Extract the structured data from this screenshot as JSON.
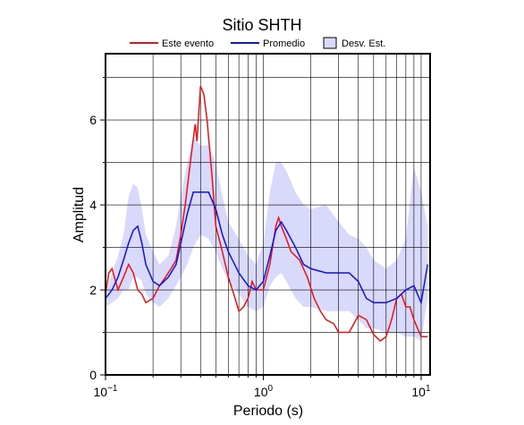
{
  "chart_data": {
    "type": "line",
    "title": "Sitio SHTH",
    "x_label": "Periodo (s)",
    "y_label": "Amplitud",
    "xscale": "log",
    "xlim": [
      0.1,
      11.4
    ],
    "ylim": [
      0,
      7.56
    ],
    "xticks": [
      {
        "value": 0.1,
        "label": "10",
        "power": "−1"
      },
      {
        "value": 1,
        "label": "10",
        "power": "0"
      },
      {
        "value": 10,
        "label": "10",
        "power": "1"
      }
    ],
    "xminor": [
      0.2,
      0.3,
      0.4,
      0.5,
      0.6,
      0.7,
      0.8,
      0.9,
      2,
      3,
      4,
      5,
      6,
      7,
      8,
      9
    ],
    "yticks": [
      0,
      2,
      4,
      6
    ],
    "yminor": [
      1,
      3,
      5,
      7
    ],
    "grid": true,
    "band": {
      "name": "Desv. Est.",
      "color": "#d9d9fb",
      "x": [
        0.1,
        0.11,
        0.12,
        0.13,
        0.14,
        0.15,
        0.16,
        0.17,
        0.18,
        0.2,
        0.22,
        0.25,
        0.28,
        0.3,
        0.33,
        0.36,
        0.4,
        0.45,
        0.5,
        0.55,
        0.6,
        0.7,
        0.8,
        0.9,
        1.0,
        1.1,
        1.2,
        1.3,
        1.4,
        1.6,
        1.8,
        2.0,
        2.5,
        3.0,
        3.5,
        4.0,
        4.5,
        5.0,
        6.0,
        7.0,
        8.0,
        9.0,
        10.0,
        11.0
      ],
      "lower": [
        1.6,
        1.7,
        1.8,
        2.0,
        2.0,
        2.3,
        2.3,
        2.2,
        1.9,
        1.7,
        1.6,
        1.8,
        2.1,
        2.3,
        2.6,
        3.0,
        3.3,
        3.2,
        2.9,
        2.5,
        2.2,
        1.9,
        1.6,
        1.5,
        1.6,
        2.1,
        2.3,
        2.4,
        2.2,
        1.8,
        1.6,
        1.6,
        1.5,
        1.5,
        1.5,
        1.3,
        1.1,
        1.1,
        1.0,
        1.0,
        0.9,
        0.9,
        0.8,
        1.8
      ],
      "upper": [
        1.9,
        2.4,
        2.8,
        3.3,
        4.2,
        4.5,
        4.4,
        3.9,
        3.3,
        2.9,
        2.6,
        2.8,
        3.5,
        4.2,
        5.0,
        5.6,
        5.4,
        5.4,
        5.0,
        4.2,
        3.6,
        3.2,
        2.8,
        2.6,
        3.1,
        4.3,
        5.0,
        5.0,
        4.8,
        4.3,
        4.0,
        3.9,
        4.0,
        3.6,
        3.3,
        3.2,
        3.0,
        2.7,
        2.5,
        2.7,
        3.2,
        4.9,
        4.3,
        3.5
      ]
    },
    "series": [
      {
        "name": "Este evento",
        "color": "#ee1111",
        "x": [
          0.1,
          0.105,
          0.11,
          0.12,
          0.13,
          0.14,
          0.15,
          0.16,
          0.17,
          0.18,
          0.2,
          0.22,
          0.24,
          0.26,
          0.28,
          0.3,
          0.32,
          0.35,
          0.37,
          0.38,
          0.4,
          0.42,
          0.44,
          0.47,
          0.5,
          0.55,
          0.6,
          0.65,
          0.7,
          0.75,
          0.8,
          0.85,
          0.9,
          1.0,
          1.1,
          1.2,
          1.25,
          1.3,
          1.4,
          1.5,
          1.7,
          1.9,
          2.1,
          2.3,
          2.5,
          2.8,
          3.0,
          3.5,
          4.0,
          4.5,
          5.0,
          5.5,
          6.0,
          6.5,
          7.0,
          7.5,
          8.0,
          8.5,
          9.0,
          10.0,
          11.0
        ],
        "values": [
          1.9,
          2.4,
          2.5,
          2.0,
          2.3,
          2.6,
          2.4,
          2.0,
          1.9,
          1.7,
          1.8,
          2.1,
          2.3,
          2.5,
          2.7,
          3.3,
          4.0,
          5.2,
          5.9,
          5.5,
          6.8,
          6.6,
          6.0,
          4.8,
          3.5,
          2.9,
          2.3,
          1.9,
          1.5,
          1.6,
          1.8,
          2.2,
          2.0,
          2.0,
          2.6,
          3.5,
          3.7,
          3.5,
          3.2,
          2.9,
          2.7,
          2.3,
          1.8,
          1.5,
          1.3,
          1.2,
          1.0,
          1.0,
          1.4,
          1.3,
          0.95,
          0.8,
          0.9,
          1.3,
          1.8,
          1.9,
          1.6,
          1.6,
          1.3,
          0.9,
          0.9
        ]
      },
      {
        "name": "Promedio",
        "color": "#1111dd",
        "x": [
          0.1,
          0.11,
          0.12,
          0.13,
          0.14,
          0.15,
          0.16,
          0.17,
          0.18,
          0.2,
          0.22,
          0.25,
          0.28,
          0.3,
          0.33,
          0.36,
          0.4,
          0.45,
          0.5,
          0.55,
          0.6,
          0.7,
          0.8,
          0.9,
          1.0,
          1.1,
          1.2,
          1.3,
          1.4,
          1.6,
          1.8,
          2.0,
          2.5,
          3.0,
          3.5,
          4.0,
          4.5,
          5.0,
          6.0,
          7.0,
          8.0,
          9.0,
          10.0,
          11.0
        ],
        "values": [
          1.8,
          2.0,
          2.3,
          2.7,
          3.1,
          3.4,
          3.5,
          3.1,
          2.6,
          2.2,
          2.1,
          2.3,
          2.6,
          3.1,
          3.8,
          4.3,
          4.3,
          4.3,
          3.9,
          3.3,
          2.9,
          2.4,
          2.1,
          2.0,
          2.2,
          2.8,
          3.4,
          3.6,
          3.4,
          3.0,
          2.6,
          2.5,
          2.4,
          2.4,
          2.4,
          2.2,
          1.8,
          1.7,
          1.7,
          1.8,
          2.0,
          2.1,
          1.7,
          2.6
        ]
      }
    ]
  }
}
